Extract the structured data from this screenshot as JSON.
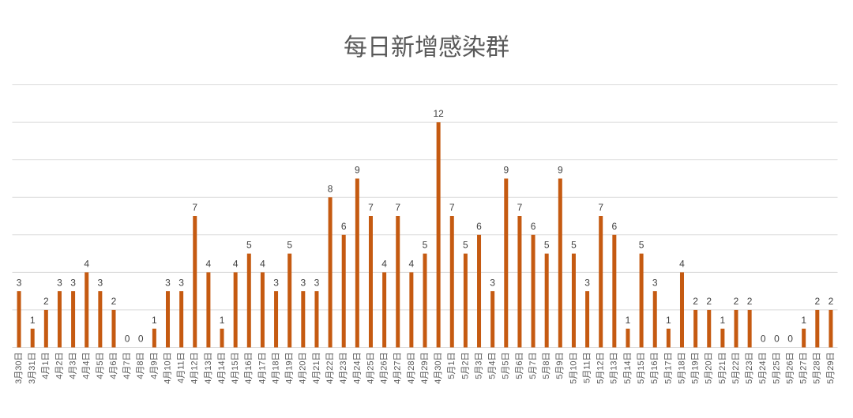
{
  "chart_data": {
    "type": "bar",
    "title": "每日新增感染群",
    "categories": [
      "3月30日",
      "3月31日",
      "4月1日",
      "4月2日",
      "4月3日",
      "4月4日",
      "4月5日",
      "4月6日",
      "4月7日",
      "4月8日",
      "4月9日",
      "4月10日",
      "4月11日",
      "4月12日",
      "4月13日",
      "4月14日",
      "4月15日",
      "4月16日",
      "4月17日",
      "4月18日",
      "4月19日",
      "4月20日",
      "4月21日",
      "4月22日",
      "4月23日",
      "4月24日",
      "4月25日",
      "4月26日",
      "4月27日",
      "4月28日",
      "4月29日",
      "4月30日",
      "5月1日",
      "5月2日",
      "5月3日",
      "5月4日",
      "5月5日",
      "5月6日",
      "5月7日",
      "5月8日",
      "5月9日",
      "5月10日",
      "5月11日",
      "5月12日",
      "5月13日",
      "5月14日",
      "5月15日",
      "5月16日",
      "5月17日",
      "5月18日",
      "5月19日",
      "5月20日",
      "5月21日",
      "5月22日",
      "5月23日",
      "5月24日",
      "5月25日",
      "5月26日",
      "5月27日",
      "5月28日",
      "5月29日"
    ],
    "values": [
      3,
      1,
      2,
      3,
      3,
      4,
      3,
      2,
      0,
      0,
      1,
      3,
      3,
      7,
      4,
      1,
      4,
      5,
      4,
      3,
      5,
      3,
      3,
      8,
      6,
      9,
      7,
      4,
      7,
      4,
      5,
      12,
      7,
      5,
      6,
      3,
      9,
      7,
      6,
      5,
      9,
      5,
      3,
      7,
      6,
      1,
      5,
      3,
      1,
      4,
      2,
      2,
      1,
      2,
      2,
      0,
      0,
      0,
      1,
      2,
      2
    ],
    "color": "#c55a11",
    "ylim": [
      0,
      14
    ],
    "yticks": [
      0,
      2,
      4,
      6,
      8,
      10,
      12,
      14
    ],
    "grid": true
  }
}
